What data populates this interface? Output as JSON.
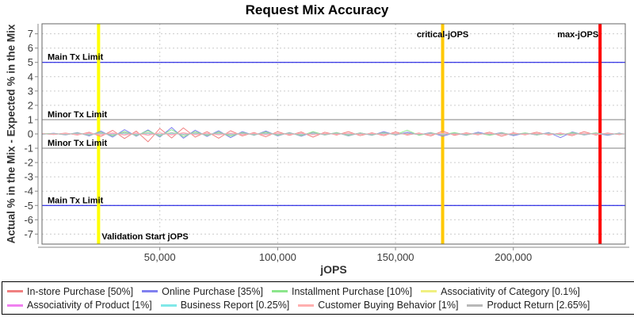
{
  "chart_data": {
    "type": "line",
    "title": "Request Mix Accuracy",
    "xlabel": "jOPS",
    "ylabel": "Actual % in the Mix - Expected % in the Mix",
    "xlim": [
      0,
      247500
    ],
    "ylim": [
      -7.7,
      7.7
    ],
    "grid": true,
    "legend_position": "bottom",
    "x_ticks": [
      {
        "v": 50000,
        "t": "50,000"
      },
      {
        "v": 100000,
        "t": "100,000"
      },
      {
        "v": 150000,
        "t": "150,000"
      },
      {
        "v": 200000,
        "t": "200,000"
      }
    ],
    "y_ticks": [
      {
        "v": 7,
        "t": "7"
      },
      {
        "v": 6,
        "t": "6"
      },
      {
        "v": 5,
        "t": "5"
      },
      {
        "v": 4,
        "t": "4"
      },
      {
        "v": 3,
        "t": "3"
      },
      {
        "v": 2,
        "t": "2"
      },
      {
        "v": 1,
        "t": "1"
      },
      {
        "v": 0,
        "t": "0"
      },
      {
        "v": -1,
        "t": "-1"
      },
      {
        "v": -2,
        "t": "-2"
      },
      {
        "v": -3,
        "t": "-3"
      },
      {
        "v": -4,
        "t": "-4"
      },
      {
        "v": -5,
        "t": "-5"
      },
      {
        "v": -6,
        "t": "-6"
      },
      {
        "v": -7,
        "t": "-7"
      }
    ],
    "h_markers": [
      {
        "y": 5,
        "label": "Main Tx Limit",
        "color": "#0000E0"
      },
      {
        "y": 1,
        "label": "Minor Tx Limit",
        "color": "#808080"
      },
      {
        "y": -1,
        "label": "Minor Tx Limit",
        "color": "#808080"
      },
      {
        "y": -5,
        "label": "Main Tx Limit",
        "color": "#0000E0"
      }
    ],
    "v_markers": [
      {
        "x": 24000,
        "label": "Validation Start jOPS",
        "color": "#FFFF00",
        "anchor": "start",
        "label_y": "bottom"
      },
      {
        "x": 170000,
        "label": "critical-jOPS",
        "color": "#FFC800",
        "anchor": "middle",
        "label_y": "top"
      },
      {
        "x": 236800,
        "label": "max-jOPS",
        "color": "#FF0000",
        "anchor": "end",
        "label_y": "top"
      }
    ],
    "x": [
      0,
      5000,
      10000,
      15000,
      20000,
      25000,
      30000,
      35000,
      40000,
      45000,
      50000,
      55000,
      60000,
      65000,
      70000,
      75000,
      80000,
      85000,
      90000,
      95000,
      100000,
      105000,
      110000,
      115000,
      120000,
      125000,
      130000,
      135000,
      140000,
      145000,
      150000,
      155000,
      160000,
      165000,
      170000,
      175000,
      180000,
      185000,
      190000,
      195000,
      200000,
      205000,
      210000,
      215000,
      220000,
      225000,
      230000,
      235000,
      240000,
      245000,
      247000
    ],
    "series": [
      {
        "name": "In-store Purchase",
        "label": "In-store Purchase [50%]",
        "color": "#F08080",
        "values": [
          0.02,
          -0.04,
          0.06,
          -0.08,
          0.12,
          -0.18,
          0.25,
          -0.32,
          0.2,
          -0.55,
          0.38,
          -0.28,
          0.42,
          -0.22,
          0.16,
          -0.3,
          0.22,
          -0.14,
          0.1,
          -0.2,
          0.16,
          -0.1,
          0.14,
          -0.22,
          0.12,
          -0.08,
          0.16,
          -0.12,
          0.08,
          -0.12,
          0.14,
          -0.08,
          0.06,
          -0.14,
          0.2,
          -0.1,
          0.08,
          -0.06,
          0.12,
          -0.16,
          0.08,
          -0.06,
          0.12,
          -0.08,
          0.06,
          -0.12,
          0.16,
          -0.08,
          0.06,
          -0.05,
          0.02
        ]
      },
      {
        "name": "Online Purchase",
        "label": "Online Purchase [35%]",
        "color": "#8080F0",
        "values": [
          -0.02,
          0.05,
          -0.07,
          0.1,
          -0.14,
          0.2,
          -0.22,
          0.3,
          -0.16,
          0.28,
          -0.22,
          0.45,
          -0.3,
          0.26,
          -0.18,
          0.22,
          -0.26,
          0.16,
          -0.1,
          0.2,
          -0.14,
          0.1,
          -0.16,
          0.14,
          -0.08,
          0.1,
          -0.14,
          0.08,
          -0.1,
          0.16,
          -0.08,
          0.12,
          -0.06,
          0.1,
          -0.16,
          0.08,
          -0.1,
          0.12,
          -0.06,
          0.1,
          -0.12,
          0.06,
          -0.08,
          0.1,
          -0.26,
          0.14,
          -0.08,
          0.06,
          -0.1,
          0.06,
          -0.03
        ]
      },
      {
        "name": "Installment Purchase",
        "label": "Installment Purchase [10%]",
        "color": "#8CE68C",
        "values": [
          0.01,
          0.03,
          -0.05,
          0.07,
          -0.09,
          0.12,
          -0.14,
          0.18,
          -0.12,
          0.22,
          -0.16,
          0.3,
          -0.2,
          0.16,
          -0.12,
          0.14,
          -0.16,
          0.1,
          -0.08,
          0.14,
          -0.1,
          0.08,
          -0.12,
          0.16,
          -0.07,
          0.09,
          -0.11,
          0.07,
          -0.08,
          0.1,
          -0.06,
          0.26,
          -0.1,
          0.08,
          -0.06,
          0.1,
          -0.08,
          0.06,
          -0.1,
          0.08,
          -0.06,
          0.08,
          -0.07,
          0.06,
          -0.08,
          0.1,
          -0.06,
          0.08,
          -0.05,
          0.04,
          -0.02
        ]
      },
      {
        "name": "Associativity of Category",
        "label": "Associativity of Category [0.1%]",
        "color": "#F0F080",
        "values": [
          0,
          0.01,
          -0.01,
          0.02,
          -0.02,
          0.02,
          -0.02,
          0.03,
          -0.02,
          0.03,
          -0.03,
          0.03,
          -0.02,
          0.02,
          -0.02,
          0.02,
          -0.02,
          0.01,
          -0.01,
          0.02,
          -0.01,
          0.01,
          -0.02,
          0.02,
          -0.01,
          0.01,
          -0.01,
          0.01,
          -0.01,
          0.02,
          -0.01,
          0.01,
          -0.01,
          0.01,
          -0.02,
          0.01,
          -0.01,
          0.01,
          -0.01,
          0.01,
          -0.01,
          0.01,
          -0.01,
          0.01,
          -0.01,
          0.01,
          -0.01,
          0.01,
          -0.01,
          0.01,
          0
        ]
      },
      {
        "name": "Associativity of Product",
        "label": "Associativity of Product [1%]",
        "color": "#F080F0",
        "values": [
          0.01,
          -0.02,
          0.03,
          -0.03,
          0.04,
          -0.05,
          0.05,
          -0.06,
          0.04,
          -0.07,
          0.06,
          -0.05,
          0.06,
          -0.04,
          0.04,
          -0.05,
          0.04,
          -0.03,
          0.03,
          -0.04,
          0.03,
          -0.03,
          0.03,
          -0.04,
          0.03,
          -0.02,
          0.03,
          -0.03,
          0.02,
          -0.03,
          0.03,
          -0.02,
          0.02,
          -0.03,
          0.04,
          -0.02,
          0.02,
          -0.02,
          0.03,
          -0.03,
          0.02,
          -0.02,
          0.03,
          -0.02,
          0.02,
          -0.03,
          0.03,
          -0.02,
          0.02,
          -0.01,
          0.01
        ]
      },
      {
        "name": "Business Report",
        "label": "Business Report [0.25%]",
        "color": "#80E8E8",
        "values": [
          -0.01,
          0.02,
          -0.02,
          0.03,
          -0.03,
          0.04,
          -0.04,
          0.05,
          -0.03,
          0.05,
          -0.04,
          0.05,
          -0.04,
          0.03,
          -0.03,
          0.04,
          -0.03,
          0.03,
          -0.02,
          0.03,
          -0.03,
          0.02,
          -0.03,
          0.03,
          -0.02,
          0.02,
          -0.03,
          0.02,
          -0.02,
          0.03,
          -0.02,
          0.02,
          -0.02,
          0.02,
          -0.03,
          0.02,
          -0.02,
          0.02,
          -0.02,
          0.02,
          -0.02,
          0.02,
          -0.02,
          0.02,
          -0.02,
          0.02,
          -0.02,
          0.02,
          -0.01,
          0.01,
          -0.01
        ]
      },
      {
        "name": "Customer Buying Behavior",
        "label": "Customer Buying Behavior [1%]",
        "color": "#FFAFAF",
        "values": [
          0.02,
          -0.03,
          0.04,
          -0.05,
          0.06,
          -0.07,
          0.08,
          -0.09,
          0.06,
          -0.1,
          0.08,
          -0.08,
          0.09,
          -0.06,
          0.05,
          -0.07,
          0.06,
          -0.05,
          0.04,
          -0.06,
          0.05,
          -0.04,
          0.05,
          -0.06,
          0.04,
          -0.03,
          0.05,
          -0.04,
          0.03,
          -0.04,
          0.05,
          -0.03,
          0.03,
          -0.04,
          0.06,
          -0.03,
          0.03,
          -0.03,
          0.04,
          -0.05,
          0.03,
          -0.03,
          0.04,
          -0.03,
          0.03,
          -0.04,
          0.05,
          -0.03,
          0.02,
          -0.02,
          0.01
        ]
      },
      {
        "name": "Product Return",
        "label": "Product Return [2.65%]",
        "color": "#B8B8B8",
        "values": [
          -0.02,
          0.03,
          -0.04,
          0.05,
          -0.06,
          0.08,
          -0.08,
          0.1,
          -0.07,
          0.1,
          -0.09,
          0.1,
          -0.08,
          0.07,
          -0.06,
          0.08,
          -0.07,
          0.05,
          -0.05,
          0.07,
          -0.05,
          0.05,
          -0.06,
          0.06,
          -0.04,
          0.05,
          -0.06,
          0.04,
          -0.05,
          0.06,
          -0.04,
          0.05,
          -0.04,
          0.05,
          -0.06,
          0.04,
          -0.04,
          0.05,
          -0.04,
          0.04,
          -0.05,
          0.04,
          -0.04,
          0.05,
          -0.04,
          0.04,
          -0.05,
          0.04,
          -0.03,
          0.02,
          -0.01
        ]
      }
    ],
    "colors": {
      "gridline": "#CCCCCC",
      "plot_border": "#666666",
      "axis_line": "#888888",
      "tick_label": "#3A3A3A",
      "marker_label": "#000000"
    }
  }
}
